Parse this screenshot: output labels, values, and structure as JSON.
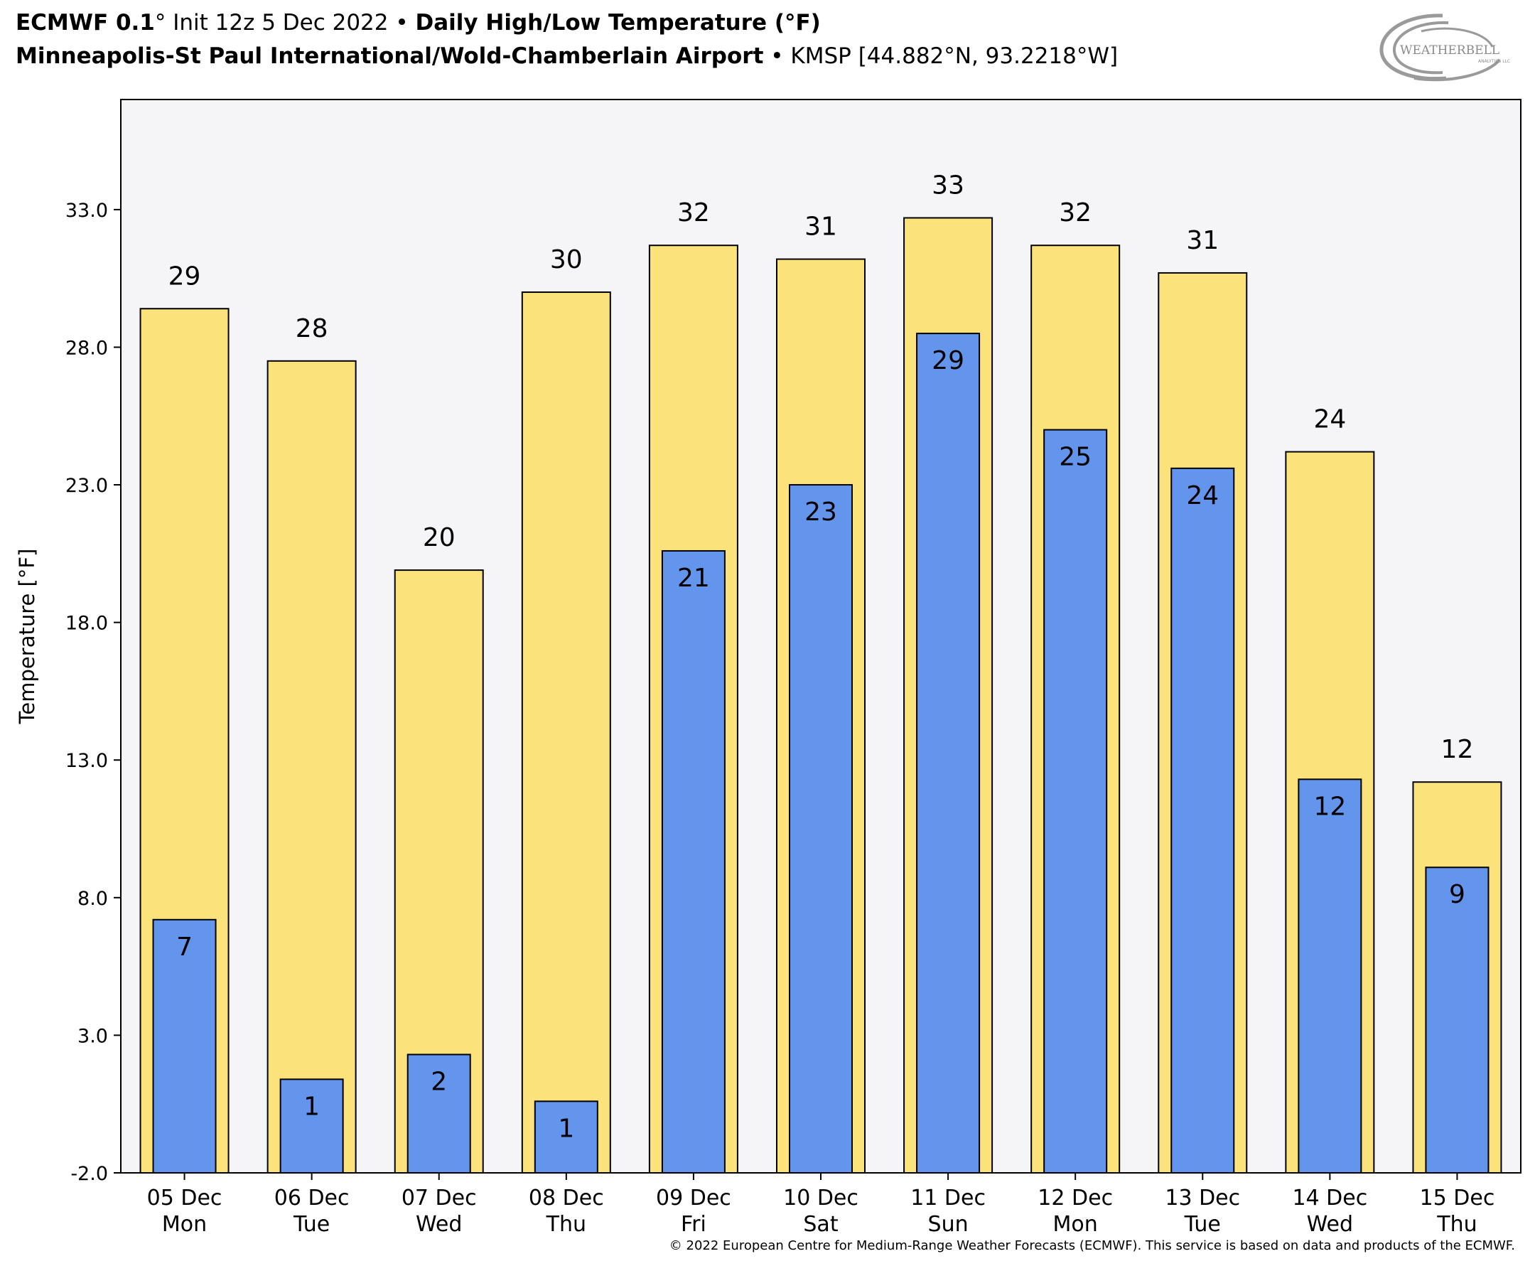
{
  "header": {
    "model": "ECMWF 0.1",
    "init_prefix": "°",
    "init": " Init 12z 5 Dec 2022",
    "sep1": " • ",
    "product": "Daily High/Low Temperature (°F)",
    "station_name": "Minneapolis-St Paul International/Wold-Chamberlain Airport",
    "sep2": " • ",
    "station_id": "KMSP [44.882°N, 93.2218°W]"
  },
  "logo": {
    "text": "WEATHERBELL",
    "sub": "ANALYTICS LLC"
  },
  "footer": {
    "copyright": "© 2022 European Centre for Medium-Range Weather Forecasts (ECMWF). This service is based on data and products of the ECMWF."
  },
  "colors": {
    "high": "#FBE27A",
    "low": "#6495ED",
    "plot_bg": "#F5F5F7"
  },
  "chart_data": {
    "type": "bar",
    "ylabel": "Temperature [°F]",
    "ylim": [
      -2.0,
      37.0
    ],
    "yticks": [
      "-2.0",
      "3.0",
      "8.0",
      "13.0",
      "18.0",
      "23.0",
      "28.0",
      "33.0"
    ],
    "grid": false,
    "categories": [
      [
        "05 Dec",
        "Mon"
      ],
      [
        "06 Dec",
        "Tue"
      ],
      [
        "07 Dec",
        "Wed"
      ],
      [
        "08 Dec",
        "Thu"
      ],
      [
        "09 Dec",
        "Fri"
      ],
      [
        "10 Dec",
        "Sat"
      ],
      [
        "11 Dec",
        "Sun"
      ],
      [
        "12 Dec",
        "Mon"
      ],
      [
        "13 Dec",
        "Tue"
      ],
      [
        "14 Dec",
        "Wed"
      ],
      [
        "15 Dec",
        "Thu"
      ]
    ],
    "series": [
      {
        "name": "High",
        "values": [
          29.4,
          27.5,
          19.9,
          30.0,
          31.7,
          31.2,
          32.7,
          31.7,
          30.7,
          24.2,
          12.2
        ],
        "labels": [
          "29",
          "28",
          "20",
          "30",
          "32",
          "31",
          "33",
          "32",
          "31",
          "24",
          "12"
        ]
      },
      {
        "name": "Low",
        "values": [
          7.2,
          1.4,
          2.3,
          0.6,
          20.6,
          23.0,
          28.5,
          25.0,
          23.6,
          12.3,
          9.1
        ],
        "labels": [
          "7",
          "1",
          "2",
          "1",
          "21",
          "23",
          "29",
          "25",
          "24",
          "12",
          "9"
        ]
      }
    ]
  }
}
